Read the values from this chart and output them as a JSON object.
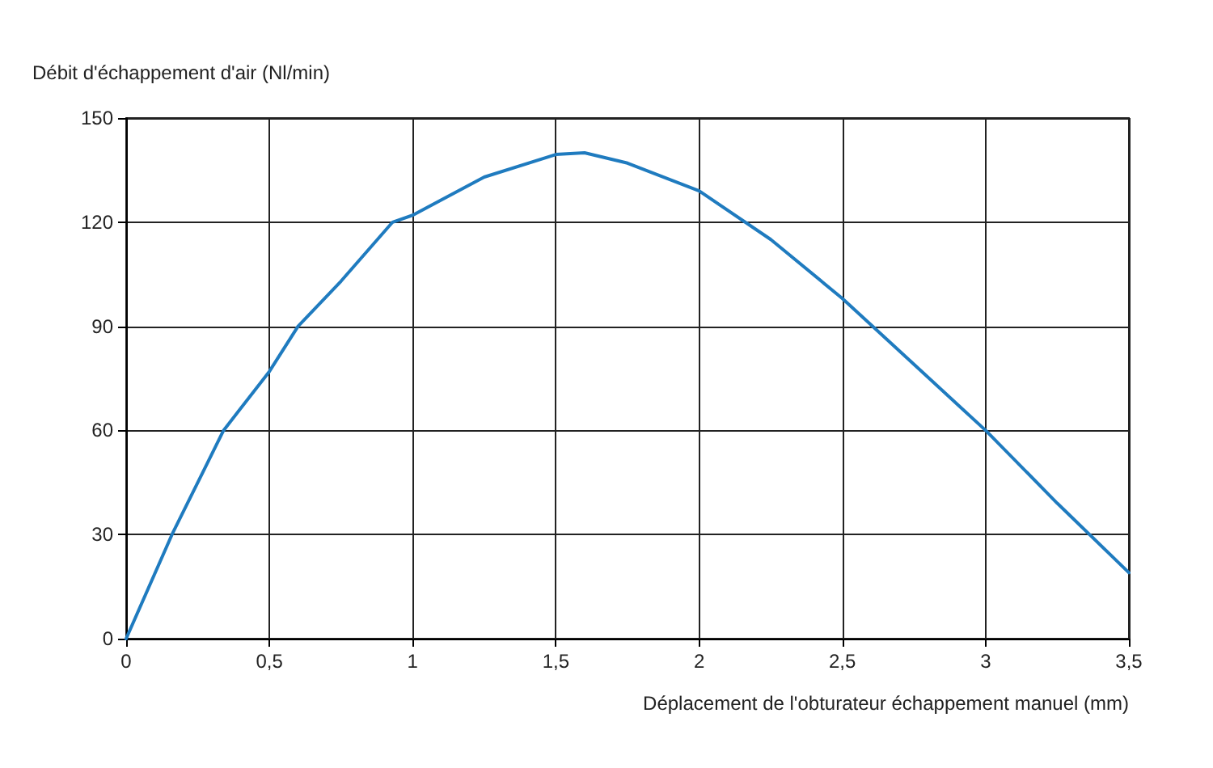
{
  "chart_data": {
    "type": "line",
    "xlabel": "Déplacement de l'obturateur échappement manuel (mm)",
    "ylabel": "Débit d'échappement d'air (Nl/min)",
    "x": [
      0,
      0.16,
      0.34,
      0.5,
      0.6,
      0.75,
      0.93,
      1,
      1.25,
      1.5,
      1.6,
      1.75,
      2,
      2.25,
      2.5,
      2.75,
      3,
      3.25,
      3.5
    ],
    "series": [
      {
        "color": "#1f7bbf",
        "values": [
          0,
          30,
          60,
          77,
          90,
          103,
          120,
          122,
          133,
          139.5,
          140,
          137,
          129,
          115,
          98,
          79,
          60,
          39,
          19
        ]
      }
    ],
    "xlim": [
      0,
      3.5
    ],
    "xticks": [
      0,
      {
        "value": 0.5,
        "label": "0,5"
      },
      1,
      {
        "value": 1.5,
        "label": "1,5"
      },
      2,
      {
        "value": 2.5,
        "label": "2,5"
      },
      3,
      {
        "value": 3.5,
        "label": "3,5"
      }
    ],
    "ylim": [
      0,
      150
    ],
    "yticks": [
      0,
      30,
      60,
      90,
      120,
      150
    ],
    "grid": true,
    "marker": "none",
    "line_style": "solid"
  }
}
